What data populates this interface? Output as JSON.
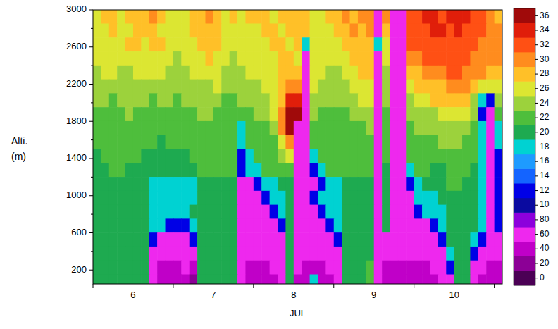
{
  "chart_data": {
    "type": "heatmap",
    "x_label": "JUL",
    "y_label": [
      "Alti.",
      "(m)"
    ],
    "xlim": [
      5.5,
      10.6
    ],
    "xticks": [
      6,
      7,
      8,
      9,
      10
    ],
    "ylim": [
      50,
      3000
    ],
    "yticks": [
      200,
      600,
      1000,
      1400,
      1800,
      2200,
      2600,
      3000
    ],
    "x": [
      5.55,
      5.65,
      5.75,
      5.85,
      5.95,
      6.05,
      6.15,
      6.25,
      6.35,
      6.45,
      6.55,
      6.65,
      6.75,
      6.85,
      6.95,
      7.05,
      7.15,
      7.25,
      7.35,
      7.45,
      7.55,
      7.65,
      7.75,
      7.85,
      7.95,
      8.05,
      8.15,
      8.25,
      8.35,
      8.45,
      8.55,
      8.65,
      8.75,
      8.85,
      8.95,
      9.05,
      9.15,
      9.25,
      9.35,
      9.45,
      9.55,
      9.65,
      9.75,
      9.85,
      9.95,
      10.05,
      10.15,
      10.25,
      10.35,
      10.45,
      10.55
    ],
    "y": [
      2925,
      2775,
      2625,
      2475,
      2325,
      2175,
      2025,
      1875,
      1725,
      1575,
      1425,
      1275,
      1125,
      975,
      825,
      675,
      525,
      375,
      225,
      75
    ],
    "cells": [
      [
        13,
        14,
        14,
        13,
        14,
        14,
        14,
        15,
        14,
        13,
        13,
        13,
        14,
        14,
        15,
        14,
        13,
        14,
        13,
        14,
        14,
        14,
        13,
        14,
        14,
        14,
        14,
        13,
        13,
        14,
        14,
        15,
        14,
        15,
        15,
        3,
        15,
        3,
        3,
        16,
        16,
        17,
        17,
        16,
        17,
        17,
        17,
        16,
        16,
        15,
        14
      ],
      [
        13,
        13,
        14,
        13,
        13,
        14,
        14,
        14,
        13,
        13,
        13,
        13,
        14,
        14,
        14,
        14,
        13,
        13,
        13,
        13,
        13,
        14,
        14,
        13,
        14,
        14,
        14,
        13,
        13,
        13,
        14,
        14,
        15,
        14,
        15,
        3,
        14,
        3,
        3,
        16,
        16,
        16,
        17,
        17,
        16,
        17,
        16,
        16,
        16,
        15,
        15
      ],
      [
        13,
        13,
        13,
        13,
        14,
        14,
        13,
        14,
        14,
        13,
        13,
        13,
        13,
        14,
        14,
        14,
        13,
        13,
        13,
        13,
        13,
        13,
        14,
        14,
        13,
        14,
        9,
        13,
        13,
        13,
        13,
        14,
        14,
        14,
        14,
        9,
        13,
        3,
        3,
        16,
        16,
        16,
        16,
        16,
        16,
        16,
        16,
        16,
        15,
        15,
        15
      ],
      [
        13,
        13,
        13,
        13,
        13,
        13,
        13,
        13,
        13,
        13,
        12,
        13,
        13,
        13,
        14,
        13,
        13,
        12,
        13,
        13,
        13,
        13,
        13,
        14,
        14,
        13,
        3,
        13,
        13,
        13,
        13,
        13,
        14,
        14,
        14,
        3,
        13,
        3,
        3,
        15,
        15,
        16,
        16,
        16,
        16,
        16,
        16,
        15,
        15,
        15,
        15
      ],
      [
        12,
        13,
        13,
        12,
        12,
        13,
        13,
        13,
        13,
        12,
        12,
        12,
        13,
        13,
        13,
        13,
        12,
        12,
        12,
        13,
        13,
        13,
        13,
        14,
        14,
        14,
        3,
        13,
        13,
        12,
        12,
        13,
        13,
        14,
        14,
        3,
        12,
        3,
        3,
        14,
        14,
        15,
        15,
        15,
        16,
        16,
        15,
        15,
        15,
        14,
        14
      ],
      [
        12,
        12,
        12,
        12,
        12,
        12,
        12,
        12,
        12,
        12,
        12,
        12,
        12,
        12,
        12,
        13,
        12,
        12,
        12,
        12,
        12,
        13,
        13,
        14,
        15,
        15,
        3,
        13,
        12,
        12,
        12,
        12,
        13,
        13,
        13,
        3,
        12,
        3,
        3,
        13,
        14,
        14,
        14,
        14,
        15,
        15,
        15,
        14,
        13,
        13,
        13
      ],
      [
        12,
        12,
        11,
        12,
        12,
        12,
        12,
        11,
        12,
        12,
        11,
        12,
        12,
        12,
        12,
        12,
        11,
        11,
        12,
        12,
        12,
        12,
        13,
        14,
        17,
        17,
        3,
        12,
        12,
        12,
        12,
        12,
        12,
        13,
        13,
        3,
        12,
        3,
        3,
        12,
        13,
        13,
        14,
        14,
        14,
        14,
        14,
        12,
        9,
        6,
        12
      ],
      [
        11,
        11,
        11,
        11,
        12,
        11,
        11,
        11,
        11,
        11,
        11,
        11,
        11,
        12,
        12,
        11,
        11,
        11,
        11,
        11,
        12,
        12,
        13,
        15,
        18,
        18,
        3,
        12,
        11,
        11,
        11,
        11,
        12,
        12,
        12,
        3,
        11,
        3,
        3,
        12,
        12,
        12,
        12,
        13,
        13,
        13,
        13,
        12,
        6,
        3,
        11
      ],
      [
        11,
        11,
        11,
        11,
        11,
        11,
        11,
        11,
        11,
        11,
        11,
        11,
        11,
        11,
        11,
        11,
        11,
        11,
        9,
        11,
        11,
        11,
        12,
        15,
        18,
        3,
        3,
        11,
        11,
        11,
        11,
        11,
        11,
        11,
        12,
        3,
        11,
        3,
        3,
        11,
        12,
        12,
        12,
        12,
        12,
        12,
        12,
        11,
        9,
        3,
        9
      ],
      [
        11,
        11,
        11,
        11,
        11,
        11,
        11,
        11,
        10,
        11,
        11,
        11,
        11,
        11,
        11,
        11,
        11,
        11,
        9,
        11,
        11,
        11,
        11,
        13,
        15,
        3,
        3,
        11,
        11,
        11,
        11,
        11,
        11,
        11,
        11,
        3,
        11,
        3,
        3,
        11,
        11,
        11,
        11,
        12,
        12,
        12,
        11,
        11,
        9,
        3,
        9
      ],
      [
        10,
        11,
        11,
        11,
        11,
        11,
        10,
        10,
        10,
        10,
        10,
        10,
        11,
        11,
        11,
        11,
        11,
        11,
        6,
        9,
        11,
        11,
        11,
        12,
        13,
        3,
        3,
        9,
        11,
        11,
        11,
        11,
        11,
        11,
        11,
        3,
        11,
        3,
        3,
        11,
        11,
        11,
        11,
        11,
        11,
        11,
        11,
        11,
        9,
        3,
        6
      ],
      [
        10,
        10,
        11,
        11,
        10,
        10,
        10,
        10,
        10,
        10,
        10,
        10,
        10,
        11,
        11,
        11,
        11,
        11,
        6,
        9,
        9,
        11,
        11,
        11,
        11,
        3,
        3,
        6,
        9,
        11,
        11,
        11,
        11,
        11,
        11,
        3,
        10,
        3,
        3,
        9,
        11,
        11,
        10,
        10,
        11,
        11,
        11,
        10,
        9,
        3,
        6
      ],
      [
        10,
        10,
        10,
        10,
        10,
        10,
        10,
        9,
        9,
        9,
        9,
        9,
        9,
        10,
        10,
        10,
        10,
        10,
        3,
        3,
        6,
        9,
        9,
        10,
        10,
        3,
        3,
        3,
        6,
        9,
        9,
        10,
        10,
        10,
        10,
        3,
        10,
        3,
        3,
        6,
        9,
        10,
        10,
        10,
        11,
        11,
        10,
        10,
        9,
        3,
        6
      ],
      [
        10,
        10,
        10,
        10,
        10,
        10,
        10,
        9,
        9,
        9,
        9,
        9,
        9,
        10,
        10,
        10,
        10,
        10,
        3,
        3,
        3,
        6,
        9,
        9,
        10,
        3,
        3,
        6,
        9,
        9,
        9,
        10,
        10,
        10,
        10,
        3,
        10,
        3,
        3,
        3,
        9,
        9,
        9,
        10,
        10,
        10,
        10,
        10,
        9,
        3,
        6
      ],
      [
        10,
        10,
        10,
        10,
        10,
        10,
        10,
        9,
        9,
        9,
        9,
        9,
        10,
        10,
        10,
        10,
        10,
        10,
        3,
        3,
        3,
        3,
        6,
        9,
        10,
        3,
        3,
        3,
        6,
        9,
        9,
        10,
        10,
        10,
        10,
        3,
        10,
        3,
        3,
        3,
        6,
        9,
        9,
        9,
        10,
        10,
        10,
        10,
        9,
        3,
        6
      ],
      [
        10,
        10,
        10,
        10,
        10,
        10,
        10,
        9,
        9,
        6,
        6,
        6,
        9,
        10,
        10,
        10,
        10,
        10,
        3,
        3,
        3,
        3,
        3,
        6,
        10,
        3,
        3,
        3,
        3,
        6,
        9,
        10,
        10,
        10,
        10,
        3,
        10,
        3,
        3,
        3,
        3,
        3,
        6,
        9,
        10,
        10,
        10,
        10,
        9,
        3,
        6
      ],
      [
        10,
        10,
        10,
        10,
        10,
        10,
        10,
        6,
        3,
        3,
        3,
        3,
        6,
        10,
        10,
        10,
        10,
        10,
        3,
        3,
        3,
        3,
        3,
        3,
        10,
        3,
        3,
        3,
        3,
        3,
        6,
        10,
        10,
        10,
        10,
        3,
        3,
        3,
        3,
        3,
        3,
        3,
        3,
        6,
        10,
        10,
        10,
        9,
        6,
        3,
        3
      ],
      [
        10,
        10,
        10,
        10,
        10,
        10,
        10,
        3,
        3,
        3,
        3,
        3,
        3,
        10,
        10,
        10,
        10,
        10,
        3,
        3,
        3,
        3,
        3,
        3,
        10,
        3,
        3,
        3,
        3,
        3,
        3,
        10,
        10,
        10,
        10,
        3,
        3,
        3,
        3,
        3,
        3,
        3,
        3,
        3,
        9,
        10,
        10,
        6,
        3,
        3,
        3
      ],
      [
        10,
        10,
        10,
        10,
        10,
        10,
        10,
        3,
        2,
        2,
        2,
        3,
        2,
        10,
        10,
        10,
        10,
        10,
        3,
        2,
        2,
        2,
        3,
        3,
        10,
        3,
        2,
        2,
        2,
        3,
        3,
        10,
        10,
        10,
        11,
        3,
        2,
        2,
        2,
        2,
        2,
        2,
        3,
        3,
        6,
        10,
        10,
        3,
        3,
        2,
        2
      ],
      [
        10,
        10,
        10,
        10,
        10,
        10,
        10,
        3,
        2,
        2,
        2,
        2,
        1,
        10,
        10,
        10,
        10,
        10,
        3,
        2,
        2,
        2,
        2,
        3,
        10,
        2,
        2,
        9,
        2,
        2,
        3,
        10,
        10,
        10,
        11,
        3,
        2,
        2,
        2,
        2,
        2,
        2,
        2,
        3,
        3,
        10,
        10,
        3,
        2,
        2,
        2
      ]
    ],
    "colorbar": {
      "range": [
        0,
        19
      ],
      "ticks": [
        {
          "value": 0.5,
          "label": "0"
        },
        {
          "value": 1.5,
          "label": "20"
        },
        {
          "value": 2.5,
          "label": "40"
        },
        {
          "value": 3.5,
          "label": "60"
        },
        {
          "value": 4.5,
          "label": "80"
        },
        {
          "value": 5.5,
          "label": "10"
        },
        {
          "value": 6.5,
          "label": "12"
        },
        {
          "value": 7.5,
          "label": "14"
        },
        {
          "value": 8.5,
          "label": "16"
        },
        {
          "value": 9.5,
          "label": "18"
        },
        {
          "value": 10.5,
          "label": "20"
        },
        {
          "value": 11.5,
          "label": "22"
        },
        {
          "value": 12.5,
          "label": "24"
        },
        {
          "value": 13.5,
          "label": "26"
        },
        {
          "value": 14.5,
          "label": "28"
        },
        {
          "value": 15.5,
          "label": "30"
        },
        {
          "value": 16.5,
          "label": "32"
        },
        {
          "value": 17.5,
          "label": "34"
        },
        {
          "value": 18.5,
          "label": "36"
        }
      ],
      "colors": [
        "#4b0055",
        "#8c0096",
        "#c000c8",
        "#ee28ee",
        "#8c00dc",
        "#0a0aa0",
        "#0000e6",
        "#1464ff",
        "#1e9bff",
        "#00d2d2",
        "#1eaa50",
        "#4ebe3c",
        "#9cd23c",
        "#dce632",
        "#ffc028",
        "#ff8c1e",
        "#ff5014",
        "#e01e0a",
        "#a00a0a"
      ]
    }
  }
}
